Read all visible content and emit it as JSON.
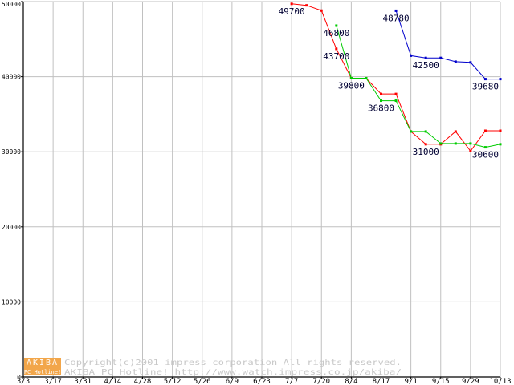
{
  "chart_data": {
    "type": "line",
    "title": "",
    "xlabel": "",
    "ylabel": "",
    "ylim": [
      0,
      50000
    ],
    "yticks": [
      0,
      10000,
      20000,
      30000,
      40000,
      50000
    ],
    "ytick_labels": [
      "0",
      "10000",
      "20000",
      "30000",
      "40000",
      "50000"
    ],
    "xlim": [
      0,
      32
    ],
    "xticks": [
      0,
      2,
      4,
      6,
      8,
      10,
      12,
      14,
      16,
      18,
      20,
      22,
      24,
      26,
      28,
      30,
      32
    ],
    "xtick_labels": [
      "3/3",
      "3/17",
      "3/31",
      "4/14",
      "4/28",
      "5/12",
      "5/26",
      "6/9",
      "6/23",
      "7/7",
      "7/20",
      "8/4",
      "8/17",
      "9/1",
      "9/15",
      "9/29",
      "10/13"
    ],
    "grid": true,
    "legend": "none",
    "series": [
      {
        "color": "#ff0000",
        "x": [
          18,
          19,
          20,
          21,
          22,
          23,
          24,
          25,
          26,
          27,
          28,
          29,
          30,
          31,
          32
        ],
        "values": [
          49700,
          49500,
          48800,
          43700,
          39800,
          39800,
          37700,
          37700,
          32700,
          31000,
          31000,
          32700,
          30100,
          32800,
          32800
        ]
      },
      {
        "color": "#00cc00",
        "x": [
          21,
          22,
          23,
          24,
          25,
          26,
          27,
          28,
          29,
          30,
          31,
          32
        ],
        "values": [
          46800,
          39800,
          39800,
          36800,
          36800,
          32700,
          32700,
          31100,
          31100,
          31100,
          30600,
          31000
        ]
      },
      {
        "color": "#0000cc",
        "x": [
          25,
          26,
          27,
          28,
          29,
          30,
          31,
          32
        ],
        "values": [
          48780,
          42800,
          42500,
          42500,
          42000,
          41900,
          39680,
          39680
        ]
      }
    ],
    "annotations": [
      {
        "text": "49700",
        "x": 18,
        "y": 49700
      },
      {
        "text": "46800",
        "x": 21,
        "y": 46800
      },
      {
        "text": "43700",
        "x": 21,
        "y": 43700
      },
      {
        "text": "39800",
        "x": 22,
        "y": 39800
      },
      {
        "text": "36800",
        "x": 24,
        "y": 36800
      },
      {
        "text": "48780",
        "x": 25,
        "y": 48780
      },
      {
        "text": "42500",
        "x": 27,
        "y": 42500
      },
      {
        "text": "31000",
        "x": 27,
        "y": 31000
      },
      {
        "text": "30600",
        "x": 31,
        "y": 30600
      },
      {
        "text": "39680",
        "x": 31,
        "y": 39680
      }
    ]
  },
  "watermark": {
    "logo_top": "AKIBA",
    "logo_bottom": "PC Hotline!",
    "line1": "Copyright(c)2001 impress corporation All rights reserved.",
    "line2": "AKIBA PC Hotline!  http://www.watch.impress.co.jp/akiba/"
  },
  "colors": {
    "axis": "#000000",
    "grid": "#c0c0c0",
    "background": "#ffffff",
    "logo": "#f2a64a",
    "watermark_text": "#c8c8c8"
  }
}
